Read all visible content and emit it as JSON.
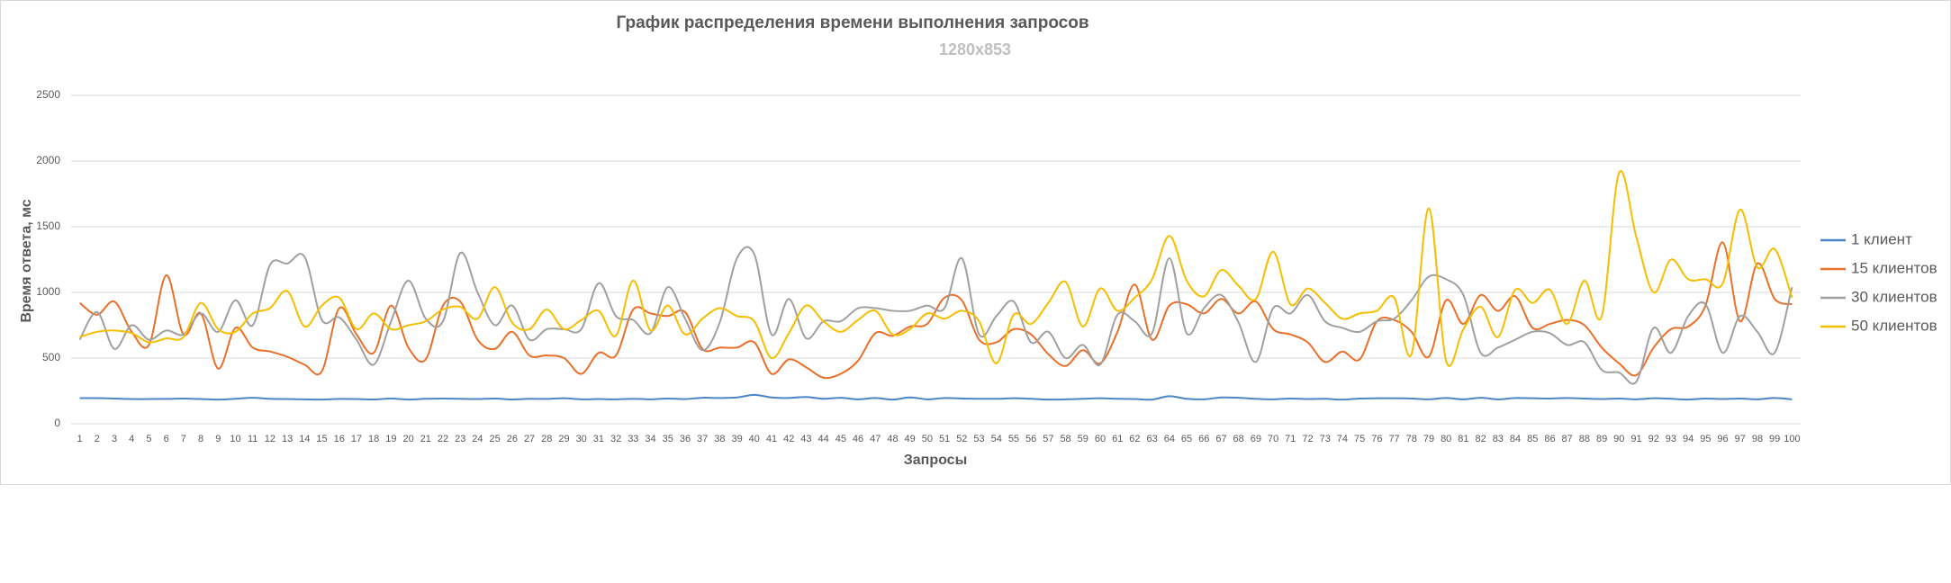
{
  "chart_data": {
    "type": "line",
    "title": "График распределения времени выполнения запросов",
    "subtitle": "1280x853",
    "x_label": "Запросы",
    "y_label": "Время ответа, мс",
    "categories": [
      1,
      2,
      3,
      4,
      5,
      6,
      7,
      8,
      9,
      10,
      11,
      12,
      13,
      14,
      15,
      16,
      17,
      18,
      19,
      20,
      21,
      22,
      23,
      24,
      25,
      26,
      27,
      28,
      29,
      30,
      31,
      32,
      33,
      34,
      35,
      36,
      37,
      38,
      39,
      40,
      41,
      42,
      43,
      44,
      45,
      46,
      47,
      48,
      49,
      50,
      51,
      52,
      53,
      54,
      55,
      56,
      57,
      58,
      59,
      60,
      61,
      62,
      63,
      64,
      65,
      66,
      67,
      68,
      69,
      70,
      71,
      72,
      73,
      74,
      75,
      76,
      77,
      78,
      79,
      80,
      81,
      82,
      83,
      84,
      85,
      86,
      87,
      88,
      89,
      90,
      91,
      92,
      93,
      94,
      95,
      96,
      97,
      98,
      99,
      100
    ],
    "ylim": [
      0,
      2500
    ],
    "yticks": [
      0,
      500,
      1000,
      1500,
      2000,
      2500
    ],
    "grid": true,
    "legend": "right",
    "series": [
      {
        "name": "1 клиент",
        "color": "#4a86c5",
        "values": [
          195,
          195,
          192,
          188,
          188,
          189,
          192,
          188,
          184,
          190,
          198,
          190,
          188,
          186,
          184,
          189,
          188,
          185,
          192,
          184,
          190,
          192,
          190,
          188,
          192,
          185,
          190,
          189,
          194,
          186,
          188,
          186,
          190,
          186,
          192,
          188,
          198,
          196,
          200,
          220,
          200,
          196,
          204,
          190,
          198,
          186,
          196,
          184,
          200,
          186,
          196,
          192,
          190,
          190,
          194,
          190,
          184,
          186,
          190,
          194,
          190,
          188,
          184,
          210,
          190,
          186,
          200,
          198,
          190,
          186,
          192,
          188,
          190,
          184,
          192,
          194,
          194,
          192,
          186,
          196,
          186,
          198,
          186,
          196,
          194,
          192,
          196,
          192,
          188,
          192,
          186,
          194,
          190,
          184,
          192,
          188,
          192,
          186,
          196,
          186
        ]
      },
      {
        "name": "15 клиентов",
        "color": "#e8702a",
        "values": [
          920,
          830,
          930,
          700,
          600,
          1130,
          680,
          840,
          420,
          730,
          580,
          550,
          510,
          450,
          400,
          880,
          680,
          540,
          900,
          580,
          490,
          900,
          930,
          640,
          570,
          700,
          520,
          520,
          500,
          380,
          540,
          520,
          870,
          840,
          820,
          850,
          570,
          580,
          580,
          620,
          380,
          490,
          430,
          350,
          380,
          480,
          690,
          670,
          740,
          760,
          960,
          940,
          640,
          620,
          720,
          680,
          530,
          440,
          560,
          460,
          700,
          1060,
          640,
          900,
          910,
          840,
          950,
          840,
          930,
          720,
          680,
          620,
          470,
          550,
          490,
          780,
          790,
          700,
          510,
          940,
          760,
          980,
          860,
          970,
          730,
          760,
          790,
          750,
          580,
          460,
          370,
          580,
          720,
          740,
          900,
          1380,
          780,
          1220,
          950,
          910
        ]
      },
      {
        "name": "30 клиентов",
        "color": "#a0a0a0",
        "values": [
          640,
          850,
          570,
          750,
          640,
          710,
          680,
          840,
          700,
          940,
          750,
          1210,
          1220,
          1270,
          790,
          810,
          640,
          450,
          780,
          1090,
          800,
          780,
          1300,
          1000,
          750,
          900,
          640,
          720,
          720,
          720,
          1070,
          820,
          790,
          690,
          1040,
          800,
          560,
          770,
          1260,
          1290,
          680,
          950,
          650,
          780,
          780,
          880,
          880,
          860,
          860,
          900,
          880,
          1260,
          680,
          820,
          930,
          620,
          700,
          500,
          600,
          450,
          830,
          780,
          690,
          1260,
          690,
          880,
          980,
          770,
          470,
          880,
          840,
          980,
          780,
          730,
          700,
          780,
          800,
          940,
          1120,
          1100,
          980,
          540,
          580,
          640,
          700,
          690,
          600,
          620,
          410,
          390,
          320,
          730,
          540,
          820,
          910,
          540,
          820,
          700,
          540,
          1040
        ]
      },
      {
        "name": "50 клиентов",
        "color": "#f5be00",
        "values": [
          660,
          700,
          710,
          690,
          620,
          650,
          660,
          920,
          720,
          700,
          840,
          880,
          1010,
          740,
          900,
          960,
          720,
          840,
          720,
          750,
          780,
          870,
          890,
          800,
          1040,
          770,
          720,
          870,
          720,
          790,
          860,
          670,
          1090,
          710,
          900,
          680,
          800,
          880,
          820,
          780,
          500,
          690,
          900,
          780,
          700,
          790,
          860,
          680,
          720,
          840,
          800,
          860,
          780,
          460,
          830,
          760,
          920,
          1080,
          740,
          1030,
          860,
          960,
          1100,
          1430,
          1090,
          970,
          1170,
          1050,
          950,
          1310,
          910,
          1030,
          920,
          800,
          840,
          860,
          960,
          530,
          1640,
          480,
          720,
          890,
          660,
          1020,
          920,
          1020,
          760,
          1090,
          820,
          1910,
          1420,
          1000,
          1250,
          1100,
          1100,
          1070,
          1630,
          1190,
          1330,
          960
        ]
      }
    ]
  }
}
